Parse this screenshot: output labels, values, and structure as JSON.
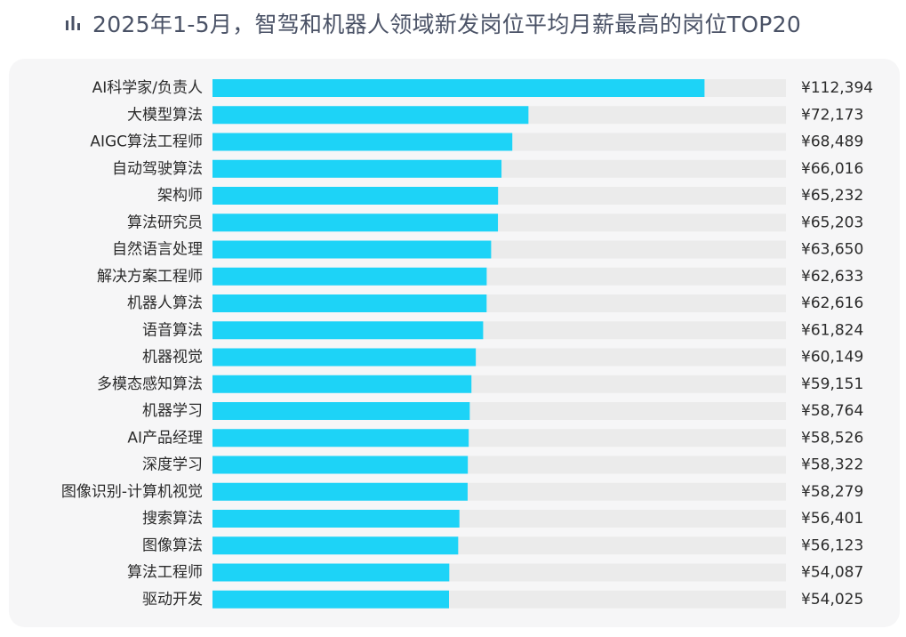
{
  "header": {
    "title": "2025年1-5月，智驾和机器人领域新发岗位平均月薪最高的岗位TOP20",
    "icon": "bar-chart-icon"
  },
  "colors": {
    "bar": "#1dd3f7",
    "track": "#ebebeb",
    "panel": "#f6f6f7",
    "icon": "#4a5266"
  },
  "chart_data": {
    "type": "bar",
    "orientation": "horizontal",
    "title": "2025年1-5月，智驾和机器人领域新发岗位平均月薪最高的岗位TOP20",
    "xlabel": "",
    "ylabel": "",
    "grid": false,
    "legend": "none",
    "xlim": [
      0,
      131000
    ],
    "categories": [
      "AI科学家/负责人",
      "大模型算法",
      "AIGC算法工程师",
      "自动驾驶算法",
      "架构师",
      "算法研究员",
      "自然语言处理",
      "解决方案工程师",
      "机器人算法",
      "语音算法",
      "机器视觉",
      "多模态感知算法",
      "机器学习",
      "AI产品经理",
      "深度学习",
      "图像识别-计算机视觉",
      "搜索算法",
      "图像算法",
      "算法工程师",
      "驱动开发"
    ],
    "values": [
      112394,
      72173,
      68489,
      66016,
      65232,
      65203,
      63650,
      62633,
      62616,
      61824,
      60149,
      59151,
      58764,
      58526,
      58322,
      58279,
      56401,
      56123,
      54087,
      54025
    ],
    "value_labels": [
      "¥112,394",
      "¥72,173",
      "¥68,489",
      "¥66,016",
      "¥65,232",
      "¥65,203",
      "¥63,650",
      "¥62,633",
      "¥62,616",
      "¥61,824",
      "¥60,149",
      "¥59,151",
      "¥58,764",
      "¥58,526",
      "¥58,322",
      "¥58,279",
      "¥56,401",
      "¥56,123",
      "¥54,087",
      "¥54,025"
    ]
  }
}
